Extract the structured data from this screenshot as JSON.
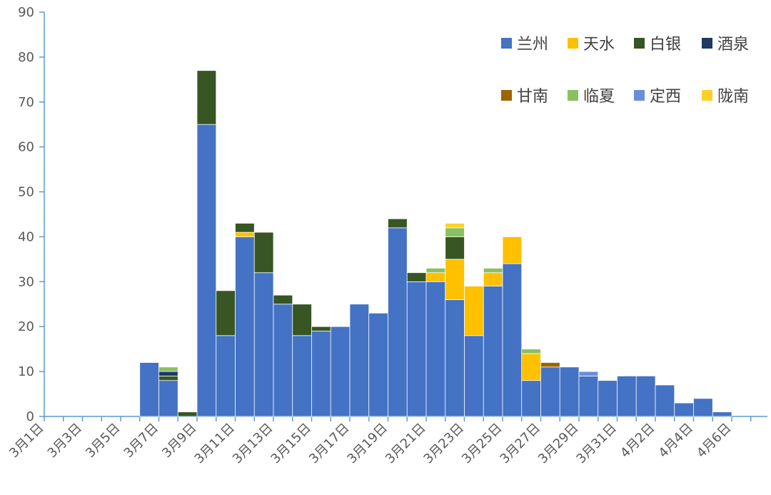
{
  "chart_data": {
    "type": "bar",
    "stacked": true,
    "title": "",
    "xlabel": "",
    "ylabel": "",
    "ylim": [
      0,
      90
    ],
    "ytick_step": 10,
    "grid": false,
    "legend_position": "top-right",
    "categories": [
      "3月1日",
      "3月2日",
      "3月3日",
      "3月4日",
      "3月5日",
      "3月6日",
      "3月7日",
      "3月8日",
      "3月9日",
      "3月10日",
      "3月11日",
      "3月12日",
      "3月13日",
      "3月14日",
      "3月15日",
      "3月16日",
      "3月17日",
      "3月18日",
      "3月19日",
      "3月20日",
      "3月21日",
      "3月22日",
      "3月23日",
      "3月24日",
      "3月25日",
      "3月26日",
      "3月27日",
      "3月28日",
      "3月29日",
      "3月30日",
      "3月31日",
      "4月1日",
      "4月2日",
      "4月3日",
      "4月4日",
      "4月5日",
      "4月6日"
    ],
    "xtick_labels": [
      "3月1日",
      "3月3日",
      "3月5日",
      "3月7日",
      "3月9日",
      "3月11日",
      "3月13日",
      "3月15日",
      "3月17日",
      "3月19日",
      "3月21日",
      "3月23日",
      "3月25日",
      "3月27日",
      "3月29日",
      "3月31日",
      "4月2日",
      "4月4日",
      "4月6日"
    ],
    "series": [
      {
        "name": "兰州",
        "color": "#4472C4",
        "values": [
          0,
          0,
          0,
          0,
          0,
          12,
          8,
          0,
          65,
          18,
          40,
          32,
          25,
          18,
          19,
          20,
          25,
          23,
          42,
          30,
          30,
          26,
          18,
          29,
          34,
          8,
          11,
          11,
          9,
          8,
          9,
          9,
          7,
          3,
          4,
          1,
          0
        ]
      },
      {
        "name": "天水",
        "color": "#FFC000",
        "values": [
          0,
          0,
          0,
          0,
          0,
          0,
          0,
          0,
          0,
          0,
          1,
          0,
          0,
          0,
          0,
          0,
          0,
          0,
          0,
          0,
          2,
          9,
          11,
          3,
          6,
          6,
          0,
          0,
          0,
          0,
          0,
          0,
          0,
          0,
          0,
          0,
          0
        ]
      },
      {
        "name": "白银",
        "color": "#375623",
        "values": [
          0,
          0,
          0,
          0,
          0,
          0,
          1,
          1,
          12,
          10,
          2,
          9,
          2,
          7,
          1,
          0,
          0,
          0,
          2,
          2,
          0,
          5,
          0,
          0,
          0,
          0,
          0,
          0,
          0,
          0,
          0,
          0,
          0,
          0,
          0,
          0,
          0
        ]
      },
      {
        "name": "酒泉",
        "color": "#1F3864",
        "values": [
          0,
          0,
          0,
          0,
          0,
          0,
          1,
          0,
          0,
          0,
          0,
          0,
          0,
          0,
          0,
          0,
          0,
          0,
          0,
          0,
          0,
          0,
          0,
          0,
          0,
          0,
          0,
          0,
          0,
          0,
          0,
          0,
          0,
          0,
          0,
          0,
          0
        ]
      },
      {
        "name": "甘南",
        "color": "#9C6500",
        "values": [
          0,
          0,
          0,
          0,
          0,
          0,
          0,
          0,
          0,
          0,
          0,
          0,
          0,
          0,
          0,
          0,
          0,
          0,
          0,
          0,
          0,
          0,
          0,
          0,
          0,
          0,
          1,
          0,
          0,
          0,
          0,
          0,
          0,
          0,
          0,
          0,
          0
        ]
      },
      {
        "name": "临夏",
        "color": "#8BC061",
        "values": [
          0,
          0,
          0,
          0,
          0,
          0,
          1,
          0,
          0,
          0,
          0,
          0,
          0,
          0,
          0,
          0,
          0,
          0,
          0,
          0,
          1,
          2,
          0,
          1,
          0,
          1,
          0,
          0,
          0,
          0,
          0,
          0,
          0,
          0,
          0,
          0,
          0
        ]
      },
      {
        "name": "定西",
        "color": "#6A8FD8",
        "values": [
          0,
          0,
          0,
          0,
          0,
          0,
          0,
          0,
          0,
          0,
          0,
          0,
          0,
          0,
          0,
          0,
          0,
          0,
          0,
          0,
          0,
          0,
          0,
          0,
          0,
          0,
          0,
          0,
          1,
          0,
          0,
          0,
          0,
          0,
          0,
          0,
          0
        ]
      },
      {
        "name": "陇南",
        "color": "#FFD028",
        "values": [
          0,
          0,
          0,
          0,
          0,
          0,
          0,
          0,
          0,
          0,
          0,
          0,
          0,
          0,
          0,
          0,
          0,
          0,
          0,
          0,
          0,
          1,
          0,
          0,
          0,
          0,
          0,
          0,
          0,
          0,
          0,
          0,
          0,
          0,
          0,
          0,
          0
        ]
      }
    ]
  }
}
